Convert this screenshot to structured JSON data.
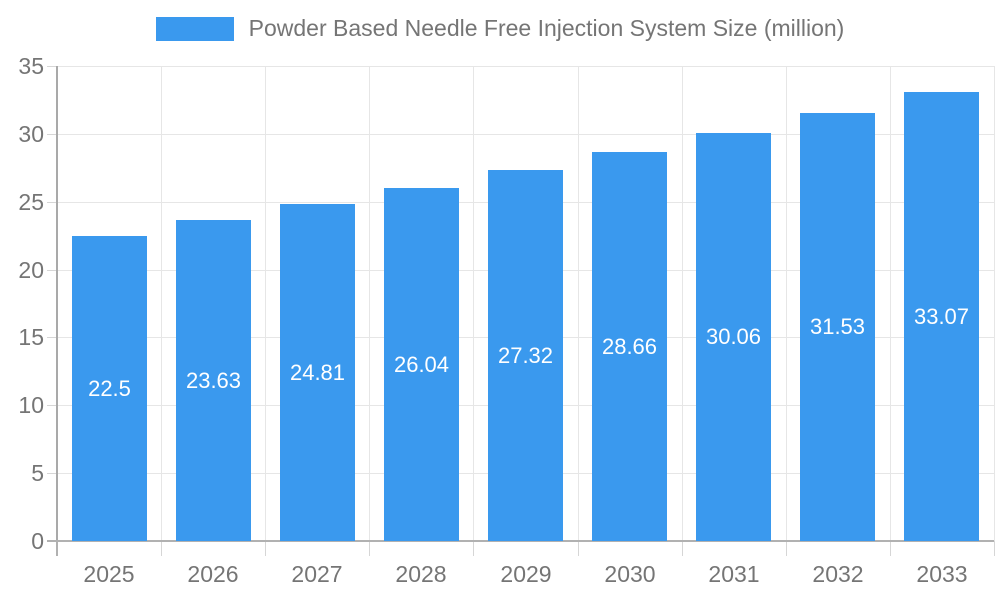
{
  "chart_data": {
    "type": "bar",
    "title": "Powder Based Needle Free Injection System Size (million)",
    "categories": [
      "2025",
      "2026",
      "2027",
      "2028",
      "2029",
      "2030",
      "2031",
      "2032",
      "2033"
    ],
    "values": [
      22.5,
      23.63,
      24.81,
      26.04,
      27.32,
      28.66,
      30.06,
      31.53,
      33.07
    ],
    "value_labels": [
      "22.5",
      "23.63",
      "24.81",
      "26.04",
      "27.32",
      "28.66",
      "30.06",
      "31.53",
      "33.07"
    ],
    "xlabel": "",
    "ylabel": "",
    "ylim": [
      0,
      35
    ],
    "yticks": [
      0,
      5,
      10,
      15,
      20,
      25,
      30,
      35
    ],
    "grid": true,
    "legend_position": "top-center",
    "colors": {
      "bar": "#3a99ee",
      "grid": "#e6e6e6",
      "tick": "#d6d6d6",
      "axis": "#a9a9a9",
      "baseline": "#b1b1b1",
      "text": "#757575",
      "bar_label": "#ffffff",
      "background": "#ffffff"
    }
  }
}
